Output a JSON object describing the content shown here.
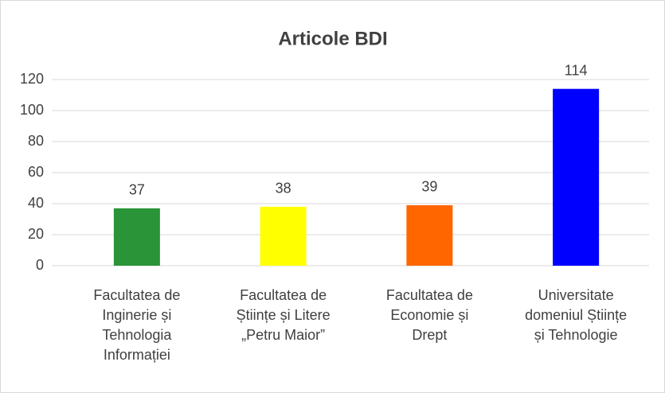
{
  "chart_data": {
    "type": "bar",
    "title": "Articole BDI",
    "categories": [
      "Facultatea de\nInginerie și\nTehnologia\nInformației",
      "Facultatea de\nȘtiințe și Litere\n„Petru Maior”",
      "Facultatea de\nEconomie și\nDrept",
      "Universitate\ndomeniul Științe\nși Tehnologie"
    ],
    "values": [
      37,
      38,
      39,
      114
    ],
    "colors": [
      "#2a9438",
      "#ffff00",
      "#ff6600",
      "#0000ff"
    ],
    "ylim": [
      0,
      120
    ],
    "yticks": [
      0,
      20,
      40,
      60,
      80,
      100,
      120
    ],
    "grid": true
  }
}
